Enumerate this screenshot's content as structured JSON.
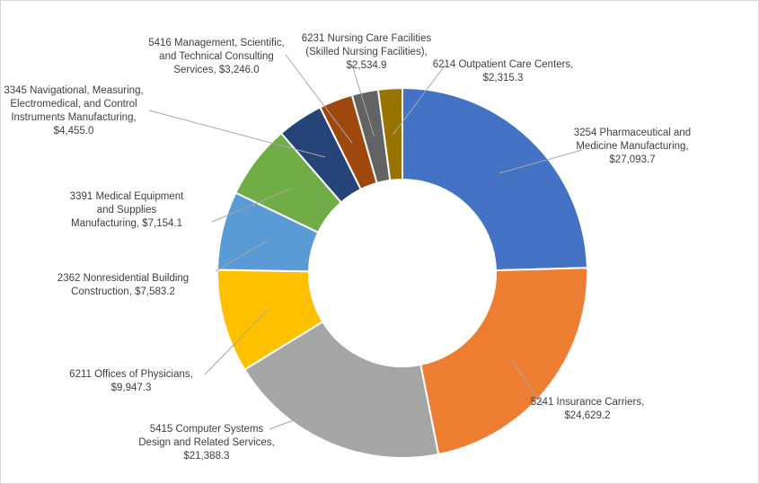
{
  "chart_data": {
    "type": "pie",
    "donut": true,
    "title": "",
    "unit_prefix": "$",
    "legend": "none",
    "slices": [
      {
        "code": "3254",
        "label_lines": [
          "3254 Pharmaceutical and",
          "Medicine Manufacturing,",
          "$27,093.7"
        ],
        "value": 27093.7,
        "color": "#4472c4"
      },
      {
        "code": "5241",
        "label_lines": [
          "5241 Insurance Carriers,",
          "$24,629.2"
        ],
        "value": 24629.2,
        "color": "#ed7d31"
      },
      {
        "code": "5415",
        "label_lines": [
          "5415 Computer Systems",
          "Design and Related Services,",
          "$21,388.3"
        ],
        "value": 21388.3,
        "color": "#a5a5a5"
      },
      {
        "code": "6211",
        "label_lines": [
          "6211 Offices of Physicians,",
          "$9,947.3"
        ],
        "value": 9947.3,
        "color": "#ffc000"
      },
      {
        "code": "2362",
        "label_lines": [
          "2362 Nonresidential Building",
          "Construction, $7,583.2"
        ],
        "value": 7583.2,
        "color": "#5b9bd5"
      },
      {
        "code": "3391",
        "label_lines": [
          "3391 Medical Equipment",
          "and Supplies",
          "Manufacturing, $7,154.1"
        ],
        "value": 7154.1,
        "color": "#70ad47"
      },
      {
        "code": "3345",
        "label_lines": [
          "3345 Navigational, Measuring,",
          "Electromedical, and Control",
          "Instruments Manufacturing,",
          "$4,455.0"
        ],
        "value": 4455.0,
        "color": "#264478"
      },
      {
        "code": "5416",
        "label_lines": [
          "5416 Management, Scientific,",
          "and Technical Consulting",
          "Services, $3,246.0"
        ],
        "value": 3246.0,
        "color": "#9e480e"
      },
      {
        "code": "6231",
        "label_lines": [
          "6231 Nursing Care Facilities",
          "(Skilled Nursing Facilities),",
          "$2,534.9"
        ],
        "value": 2534.9,
        "color": "#636363"
      },
      {
        "code": "6214",
        "label_lines": [
          "6214 Outpatient Care Centers,",
          "$2,315.3"
        ],
        "value": 2315.3,
        "color": "#997300"
      }
    ]
  }
}
